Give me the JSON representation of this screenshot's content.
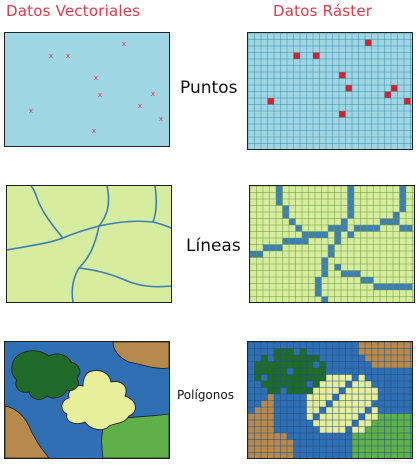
{
  "headers": {
    "vector": "Datos Vectoriales",
    "raster": "Datos Ráster"
  },
  "rows": {
    "points": "Puntos",
    "lines": "Líneas",
    "polygons": "Polígonos"
  },
  "colors": {
    "title_red": "#e23a4a",
    "water_blue": "#9fd6e4",
    "point_red": "#d6202e",
    "land_green": "#d6ec9f",
    "line_blue": "#3d7fb5",
    "poly_blue": "#2f6fb3",
    "poly_darkgreen": "#1f6b2a",
    "poly_lightgreen": "#5fb048",
    "poly_cream": "#e7ef9a",
    "poly_tan": "#b68a4c"
  },
  "glyphs": {
    "point_mark": "x"
  }
}
